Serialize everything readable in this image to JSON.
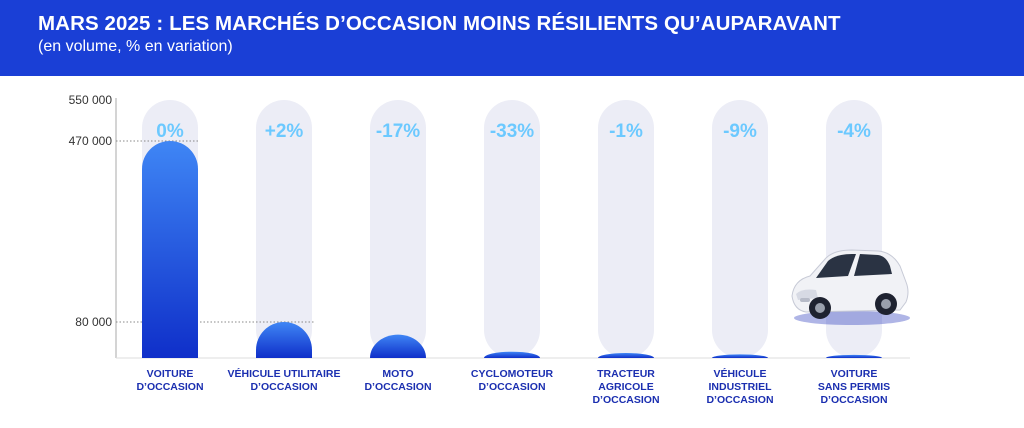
{
  "header": {
    "title": "MARS 2025 : LES MARCHÉS D’OCCASION MOINS RÉSILIENTS QU’AUPARAVANT",
    "subtitle": "(en volume, % en variation)"
  },
  "colors": {
    "header_bg": "#1a3fd6",
    "bar_top": "#3f86f5",
    "bar_bottom": "#0f2fc9",
    "pill": "#ecedf6",
    "percent": "#6cc9ff",
    "label": "#1b2fb0",
    "axis_text": "#333333"
  },
  "icons": [
    "car-illustration"
  ],
  "chart_data": {
    "type": "bar",
    "title": "MARS 2025 : LES MARCHÉS D’OCCASION MOINS RÉSILIENTS QU’AUPARAVANT",
    "subtitle": "(en volume, % en variation)",
    "categories": [
      [
        "VOITURE",
        "D’OCCASION"
      ],
      [
        "VÉHICULE UTILITAIRE",
        "D’OCCASION"
      ],
      [
        "MOTO",
        "D’OCCASION"
      ],
      [
        "CYCLOMOTEUR",
        "D’OCCASION"
      ],
      [
        "TRACTEUR",
        "AGRICOLE",
        "D’OCCASION"
      ],
      [
        "VÉHICULE",
        "INDUSTRIEL",
        "D’OCCASION"
      ],
      [
        "VOITURE",
        "SANS PERMIS",
        "D’OCCASION"
      ]
    ],
    "values": [
      470000,
      80000,
      52000,
      14000,
      11000,
      8000,
      7000
    ],
    "percent_labels": [
      "0%",
      "+2%",
      "-17%",
      "-33%",
      "-1%",
      "-9%",
      "-4%"
    ],
    "y_tick_labels": [
      "550 000",
      "470 000",
      "80 000"
    ],
    "y_tick_values": [
      550000,
      470000,
      80000
    ],
    "reference_lines": [
      470000,
      80000
    ],
    "ylim": [
      0,
      550000
    ],
    "y_axis_break": true,
    "grid": false,
    "legend": "none"
  }
}
